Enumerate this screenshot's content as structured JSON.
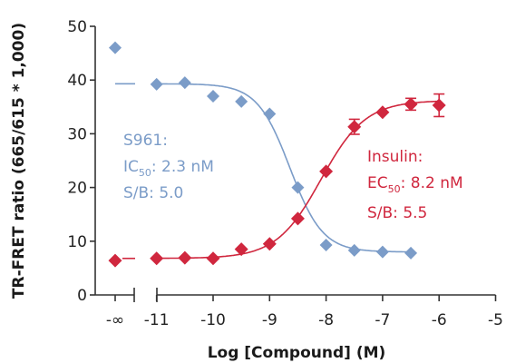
{
  "chart_data": {
    "type": "scatter",
    "xlabel": "Log [Compound] (M)",
    "ylabel": "TR-FRET ratio (665/615 * 1,000)",
    "xlim": [
      -12.5,
      -5
    ],
    "ylim": [
      0,
      50
    ],
    "y_ticks": [
      "0",
      "10",
      "20",
      "30",
      "40",
      "50"
    ],
    "x_ticks": [
      "-∞",
      "-11",
      "-10",
      "-9",
      "-8",
      "-7",
      "-6",
      "-5"
    ],
    "axis_break": true,
    "series": [
      {
        "name": "S961",
        "color": "#7b9cc8",
        "marker": "diamond",
        "points": [
          {
            "x": "-∞",
            "y": 46
          },
          {
            "x": -11,
            "y": 39.2
          },
          {
            "x": -10.5,
            "y": 39.5
          },
          {
            "x": -10,
            "y": 37
          },
          {
            "x": -9.5,
            "y": 36
          },
          {
            "x": -9,
            "y": 33.7
          },
          {
            "x": -8.5,
            "y": 20
          },
          {
            "x": -8,
            "y": 9.3
          },
          {
            "x": -7.5,
            "y": 8.3
          },
          {
            "x": -7,
            "y": 8
          },
          {
            "x": -6.5,
            "y": 7.8
          }
        ],
        "curve": {
          "bottom": 8,
          "top": 39.3,
          "log_ic50": -8.64,
          "hill": -1.5
        },
        "baseline_dash_y": 39.3,
        "annotation": {
          "name": "S961:",
          "metric": "IC",
          "metric_sub": "50",
          "metric_value": ": 2.3 nM",
          "sb": "S/B: 5.0"
        }
      },
      {
        "name": "Insulin",
        "color": "#d0273e",
        "marker": "diamond",
        "points": [
          {
            "x": "-∞",
            "y": 6.4
          },
          {
            "x": -11,
            "y": 6.8
          },
          {
            "x": -10.5,
            "y": 6.9
          },
          {
            "x": -10,
            "y": 6.8
          },
          {
            "x": -9.5,
            "y": 8.5
          },
          {
            "x": -9,
            "y": 9.5
          },
          {
            "x": -8.5,
            "y": 14.2
          },
          {
            "x": -8,
            "y": 23
          },
          {
            "x": -7.5,
            "y": 31.3,
            "err": 1.4
          },
          {
            "x": -7,
            "y": 34
          },
          {
            "x": -6.5,
            "y": 35.5,
            "err": 1.1
          },
          {
            "x": -6,
            "y": 35.3,
            "err": 2.1
          }
        ],
        "curve": {
          "bottom": 6.8,
          "top": 36.2,
          "log_ec50": -8.09,
          "hill": 1.1
        },
        "baseline_dash_y": 6.8,
        "annotation": {
          "name": "Insulin:",
          "metric": "EC",
          "metric_sub": "50",
          "metric_value": ": 8.2 nM",
          "sb": "S/B: 5.5"
        }
      }
    ]
  }
}
